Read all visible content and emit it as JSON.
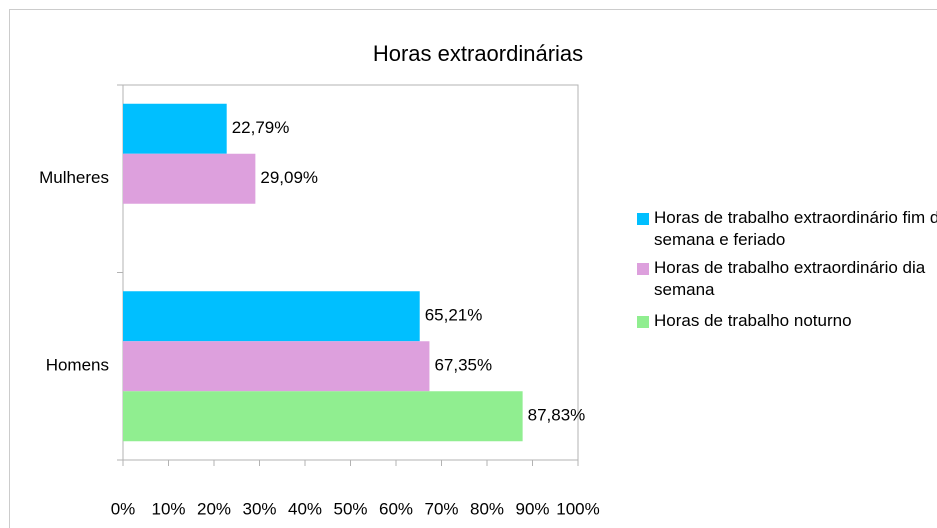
{
  "chart_data": {
    "type": "hbar",
    "title": "Horas extraordinárias",
    "categories": [
      "Mulheres",
      "Homens"
    ],
    "series": [
      {
        "name": "Horas de trabalho extraordinário fim de semana e feriado",
        "color": "#00bfff",
        "values": [
          22.79,
          65.21
        ],
        "value_labels": [
          "22,79%",
          "65,21%"
        ]
      },
      {
        "name": "Horas de trabalho extraordinário dia semana",
        "color": "#dda0dd",
        "values": [
          29.09,
          67.35
        ],
        "value_labels": [
          "29,09%",
          "67,35%"
        ]
      },
      {
        "name": "Horas de trabalho noturno",
        "color": "#90ee90",
        "values": [
          null,
          87.83
        ],
        "value_labels": [
          null,
          "87,83%"
        ]
      }
    ],
    "xlim": [
      0,
      100
    ],
    "xticks": [
      {
        "value": 0,
        "label": "0%"
      },
      {
        "value": 10,
        "label": "10%"
      },
      {
        "value": 20,
        "label": "20%"
      },
      {
        "value": 30,
        "label": "30%"
      },
      {
        "value": 40,
        "label": "40%"
      },
      {
        "value": 50,
        "label": "50%"
      },
      {
        "value": 60,
        "label": "60%"
      },
      {
        "value": 70,
        "label": "70%"
      },
      {
        "value": 80,
        "label": "80%"
      },
      {
        "value": 90,
        "label": "90%"
      },
      {
        "value": 100,
        "label": "100%"
      }
    ],
    "grid": false,
    "legend": "right"
  }
}
